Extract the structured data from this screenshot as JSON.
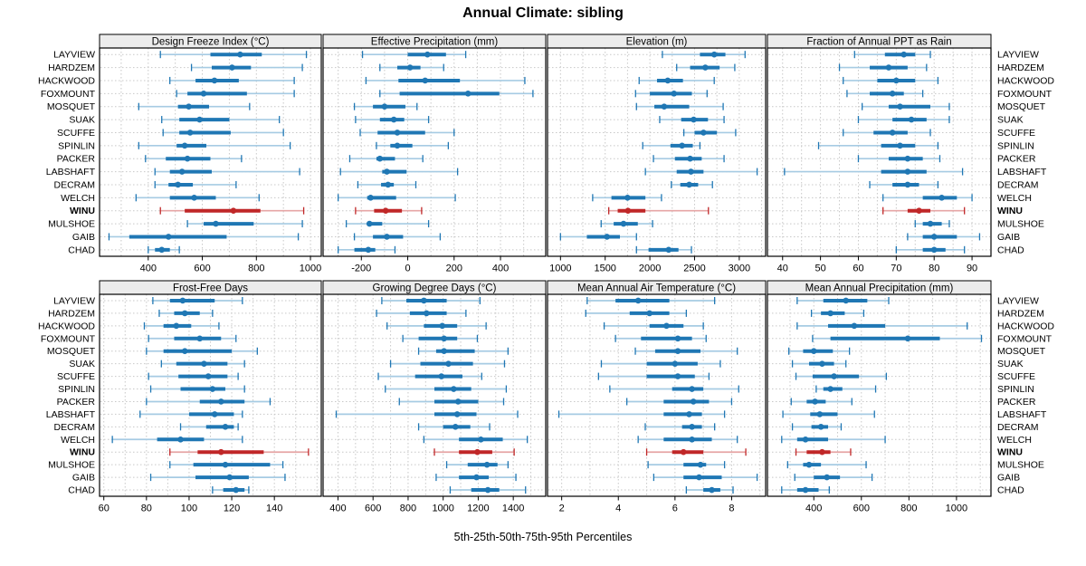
{
  "title": "Annual Climate: sibling",
  "caption": "5th-25th-50th-75th-95th Percentiles",
  "chart_data": {
    "type": "dotplot-percentiles",
    "title": "Annual Climate: sibling",
    "caption": "5th-25th-50th-75th-95th Percentiles",
    "percentiles": [
      5,
      25,
      50,
      75,
      95
    ],
    "legend_position": "none",
    "grid": "dotted-vertical-at-half-tick-and-dotted-row-guides",
    "stations": [
      "LAYVIEW",
      "HARDZEM",
      "HACKWOOD",
      "FOXMOUNT",
      "MOSQUET",
      "SUAK",
      "SCUFFE",
      "SPINLIN",
      "PACKER",
      "LABSHAFT",
      "DECRAM",
      "WELCH",
      "WINU",
      "MULSHOE",
      "GAIB",
      "CHAD"
    ],
    "highlight_station": "WINU",
    "colors": {
      "main": "#1f77b4",
      "whisker": "#a6cbe3",
      "highlight_main": "#c02728",
      "highlight_whisker": "#e6a5a5",
      "gridline": "#c8c8c8",
      "strip_bg": "#ececec",
      "panel_border": "#000000"
    },
    "panels": [
      {
        "title": "Design Freeze Index (°C)",
        "xlim": [
          220,
          1040
        ],
        "ticks": [
          400,
          600,
          800,
          1000
        ],
        "values": [
          [
            445,
            630,
            740,
            820,
            985
          ],
          [
            560,
            635,
            710,
            780,
            970
          ],
          [
            480,
            575,
            645,
            735,
            940
          ],
          [
            505,
            545,
            605,
            765,
            940
          ],
          [
            365,
            510,
            550,
            625,
            775
          ],
          [
            450,
            515,
            590,
            700,
            885
          ],
          [
            455,
            515,
            555,
            705,
            900
          ],
          [
            365,
            505,
            535,
            615,
            925
          ],
          [
            390,
            465,
            545,
            630,
            745
          ],
          [
            425,
            480,
            525,
            635,
            960
          ],
          [
            425,
            475,
            510,
            565,
            725
          ],
          [
            355,
            480,
            570,
            650,
            810
          ],
          [
            445,
            535,
            715,
            815,
            975
          ],
          [
            545,
            605,
            650,
            790,
            970
          ],
          [
            255,
            330,
            475,
            690,
            955
          ],
          [
            400,
            425,
            450,
            480,
            515
          ]
        ]
      },
      {
        "title": "Effective Precipitation (mm)",
        "xlim": [
          -365,
          595
        ],
        "ticks": [
          -200,
          0,
          200,
          400
        ],
        "values": [
          [
            -195,
            0,
            85,
            165,
            250
          ],
          [
            -120,
            -45,
            10,
            55,
            155
          ],
          [
            -180,
            -40,
            75,
            225,
            505
          ],
          [
            -120,
            -35,
            260,
            395,
            540
          ],
          [
            -230,
            -150,
            -100,
            -10,
            40
          ],
          [
            -225,
            -120,
            -60,
            -15,
            90
          ],
          [
            -205,
            -130,
            -45,
            75,
            200
          ],
          [
            -135,
            -75,
            -45,
            20,
            175
          ],
          [
            -250,
            -135,
            -120,
            -55,
            65
          ],
          [
            -290,
            -110,
            -90,
            -5,
            215
          ],
          [
            -215,
            -115,
            -85,
            -60,
            35
          ],
          [
            -300,
            -175,
            -160,
            -50,
            205
          ],
          [
            -225,
            -145,
            -95,
            -25,
            60
          ],
          [
            -265,
            -175,
            -165,
            -110,
            90
          ],
          [
            -230,
            -150,
            -90,
            -20,
            140
          ],
          [
            -300,
            -230,
            -170,
            -140,
            -55
          ]
        ]
      },
      {
        "title": "Elevation (m)",
        "xlim": [
          855,
          3295
        ],
        "ticks": [
          1000,
          1500,
          2000,
          2500,
          3000
        ],
        "values": [
          [
            2140,
            2560,
            2720,
            2845,
            3065
          ],
          [
            2300,
            2450,
            2620,
            2780,
            2950
          ],
          [
            1880,
            2080,
            2200,
            2370,
            2720
          ],
          [
            1840,
            2000,
            2270,
            2470,
            2640
          ],
          [
            1850,
            2050,
            2160,
            2440,
            2820
          ],
          [
            2110,
            2350,
            2490,
            2650,
            2830
          ],
          [
            2380,
            2500,
            2600,
            2750,
            2960
          ],
          [
            1920,
            2230,
            2360,
            2480,
            2560
          ],
          [
            2040,
            2280,
            2450,
            2580,
            2830
          ],
          [
            1950,
            2300,
            2460,
            2600,
            3200
          ],
          [
            2240,
            2340,
            2440,
            2540,
            2700
          ],
          [
            1360,
            1570,
            1750,
            1950,
            2130
          ],
          [
            1540,
            1640,
            1755,
            1950,
            2655
          ],
          [
            1455,
            1595,
            1705,
            1865,
            2030
          ],
          [
            1000,
            1295,
            1520,
            1665,
            1850
          ],
          [
            1850,
            1985,
            2210,
            2320,
            2465
          ]
        ]
      },
      {
        "title": "Fraction of Annual PPT as Rain",
        "xlim": [
          36,
          95
        ],
        "ticks": [
          40,
          50,
          60,
          70,
          80,
          90
        ],
        "values": [
          [
            59,
            67,
            72,
            75,
            79
          ],
          [
            55,
            63,
            68,
            73,
            78
          ],
          [
            56,
            65,
            70,
            75,
            81
          ],
          [
            57,
            63,
            69,
            72,
            77
          ],
          [
            61,
            68,
            71,
            79,
            84
          ],
          [
            60,
            69,
            74,
            78,
            84
          ],
          [
            56,
            64,
            69,
            73,
            79
          ],
          [
            49.5,
            66,
            71,
            75,
            81
          ],
          [
            60,
            68,
            73,
            77,
            81.5
          ],
          [
            40.5,
            66,
            73,
            78,
            87.5
          ],
          [
            63,
            69,
            73,
            76,
            81
          ],
          [
            66.5,
            77,
            82,
            86,
            90
          ],
          [
            66.5,
            73,
            76,
            79,
            88
          ],
          [
            75,
            77,
            79,
            82,
            84
          ],
          [
            73,
            77,
            80,
            86,
            92
          ],
          [
            70,
            77,
            80,
            83,
            88
          ]
        ]
      },
      {
        "title": "Frost-Free Days",
        "xlim": [
          58,
          162
        ],
        "ticks": [
          60,
          80,
          100,
          120,
          140
        ],
        "values": [
          [
            83,
            91,
            97,
            112,
            125
          ],
          [
            86,
            93,
            98,
            105,
            111
          ],
          [
            79,
            88,
            94,
            101,
            114
          ],
          [
            81,
            93,
            105,
            115,
            122
          ],
          [
            80,
            88,
            98,
            120,
            132
          ],
          [
            87,
            94,
            107,
            118,
            126
          ],
          [
            81,
            95,
            109,
            118,
            123
          ],
          [
            82,
            96,
            111,
            117,
            126
          ],
          [
            80,
            105,
            115,
            126,
            138
          ],
          [
            77,
            100,
            112,
            121,
            125
          ],
          [
            96,
            108,
            117,
            121,
            123
          ],
          [
            64,
            85,
            96,
            107,
            125
          ],
          [
            91,
            104,
            115,
            135,
            156
          ],
          [
            91,
            102,
            117,
            138,
            144
          ],
          [
            82,
            103,
            119,
            128,
            145
          ],
          [
            111,
            116,
            122,
            126,
            128
          ]
        ]
      },
      {
        "title": "Growing Degree Days (°C)",
        "xlim": [
          315,
          1585
        ],
        "ticks": [
          400,
          600,
          800,
          1000,
          1200,
          1400
        ],
        "values": [
          [
            650,
            790,
            890,
            1020,
            1210
          ],
          [
            620,
            810,
            905,
            1020,
            1130
          ],
          [
            680,
            890,
            995,
            1080,
            1245
          ],
          [
            770,
            860,
            1005,
            1080,
            1195
          ],
          [
            860,
            960,
            1005,
            1180,
            1370
          ],
          [
            700,
            870,
            1030,
            1170,
            1350
          ],
          [
            630,
            840,
            990,
            1110,
            1220
          ],
          [
            670,
            950,
            1060,
            1160,
            1360
          ],
          [
            750,
            950,
            1085,
            1200,
            1345
          ],
          [
            390,
            950,
            1080,
            1190,
            1425
          ],
          [
            860,
            1000,
            1070,
            1155,
            1265
          ],
          [
            890,
            1090,
            1215,
            1340,
            1480
          ],
          [
            950,
            1090,
            1195,
            1280,
            1405
          ],
          [
            1020,
            1140,
            1250,
            1310,
            1370
          ],
          [
            960,
            1090,
            1190,
            1260,
            1415
          ],
          [
            1040,
            1160,
            1255,
            1320,
            1470
          ]
        ]
      },
      {
        "title": "Mean Annual Air Temperature (°C)",
        "xlim": [
          1.5,
          9.2
        ],
        "ticks": [
          2,
          4,
          6,
          8
        ],
        "values": [
          [
            2.9,
            3.9,
            4.7,
            5.8,
            7.4
          ],
          [
            2.85,
            4.4,
            5.1,
            5.8,
            6.4
          ],
          [
            3.5,
            5.1,
            5.7,
            6.3,
            7.0
          ],
          [
            3.9,
            4.8,
            6.1,
            6.6,
            7.1
          ],
          [
            4.6,
            5.3,
            6.1,
            6.9,
            8.2
          ],
          [
            3.4,
            5.0,
            6.0,
            6.8,
            7.6
          ],
          [
            3.3,
            5.0,
            6.1,
            6.7,
            7.2
          ],
          [
            3.7,
            5.9,
            6.6,
            7.0,
            8.25
          ],
          [
            4.3,
            5.6,
            6.65,
            7.2,
            8.0
          ],
          [
            1.9,
            5.6,
            6.5,
            6.95,
            7.75
          ],
          [
            4.95,
            6.25,
            6.6,
            6.95,
            7.4
          ],
          [
            4.7,
            5.6,
            6.6,
            7.3,
            8.2
          ],
          [
            5.0,
            5.9,
            6.3,
            7.0,
            8.5
          ],
          [
            5.05,
            6.3,
            6.9,
            7.1,
            7.75
          ],
          [
            5.25,
            6.3,
            6.85,
            7.65,
            8.9
          ],
          [
            6.4,
            7.0,
            7.3,
            7.6,
            8.05
          ]
        ]
      },
      {
        "title": "Mean Annual Precipitation (mm)",
        "xlim": [
          205,
          1145
        ],
        "ticks": [
          400,
          600,
          800,
          1000
        ],
        "values": [
          [
            330,
            440,
            535,
            625,
            715
          ],
          [
            390,
            430,
            470,
            530,
            610
          ],
          [
            330,
            460,
            570,
            700,
            1045
          ],
          [
            395,
            470,
            795,
            930,
            1105
          ],
          [
            295,
            355,
            400,
            480,
            550
          ],
          [
            310,
            380,
            435,
            485,
            535
          ],
          [
            325,
            395,
            485,
            590,
            705
          ],
          [
            410,
            440,
            470,
            520,
            660
          ],
          [
            305,
            370,
            405,
            450,
            560
          ],
          [
            270,
            385,
            425,
            500,
            655
          ],
          [
            310,
            390,
            430,
            460,
            515
          ],
          [
            265,
            330,
            365,
            460,
            700
          ],
          [
            325,
            370,
            435,
            470,
            555
          ],
          [
            290,
            355,
            380,
            430,
            620
          ],
          [
            320,
            400,
            455,
            510,
            645
          ],
          [
            265,
            330,
            365,
            420,
            465
          ]
        ]
      }
    ]
  }
}
